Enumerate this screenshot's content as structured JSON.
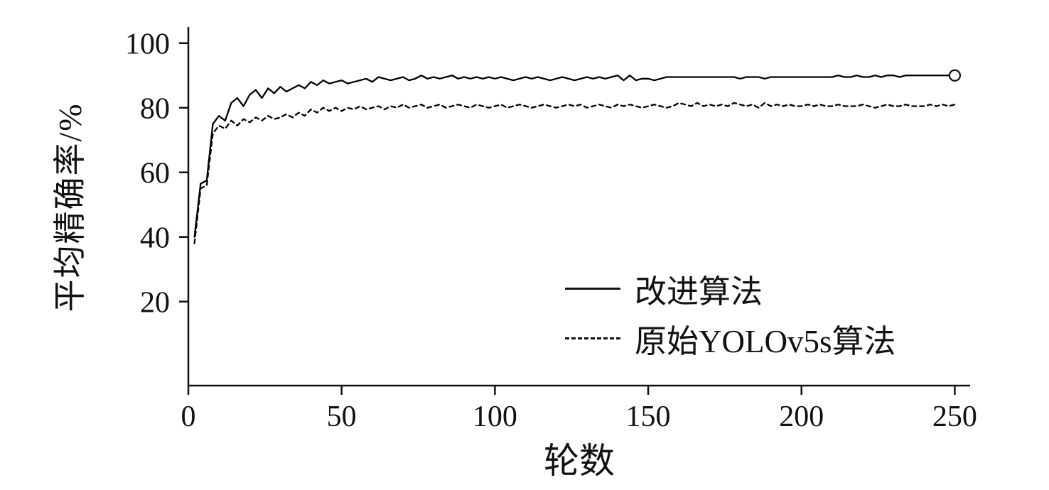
{
  "chart_data": {
    "type": "line",
    "title": "",
    "xlabel": "轮数",
    "ylabel": "平均精确率/%",
    "xlim": [
      0,
      255
    ],
    "ylim": [
      -6,
      105
    ],
    "xticks": [
      0,
      50,
      100,
      150,
      200,
      250
    ],
    "yticks": [
      20,
      40,
      60,
      80,
      100
    ],
    "grid": false,
    "legend_position": "inside lower right",
    "x": [
      2,
      4,
      6,
      8,
      10,
      12,
      14,
      16,
      18,
      20,
      22,
      24,
      26,
      28,
      30,
      32,
      34,
      36,
      38,
      40,
      42,
      44,
      46,
      48,
      50,
      52,
      54,
      56,
      58,
      60,
      62,
      64,
      66,
      68,
      70,
      72,
      74,
      76,
      78,
      80,
      82,
      84,
      86,
      88,
      90,
      92,
      94,
      96,
      98,
      100,
      102,
      104,
      106,
      108,
      110,
      112,
      114,
      116,
      118,
      120,
      122,
      124,
      126,
      128,
      130,
      132,
      134,
      136,
      138,
      140,
      142,
      144,
      146,
      148,
      150,
      152,
      154,
      156,
      158,
      160,
      162,
      164,
      166,
      168,
      170,
      172,
      174,
      176,
      178,
      180,
      182,
      184,
      186,
      188,
      190,
      192,
      194,
      196,
      198,
      200,
      202,
      204,
      206,
      208,
      210,
      212,
      214,
      216,
      218,
      220,
      222,
      224,
      226,
      228,
      230,
      232,
      234,
      236,
      238,
      240,
      242,
      244,
      246,
      248,
      250
    ],
    "series": [
      {
        "name": "改进算法",
        "style": "solid",
        "color": "#000000",
        "end_marker": "open-circle",
        "values": [
          40.0,
          56.5,
          57.5,
          75.0,
          77.5,
          76.0,
          81.5,
          83.0,
          80.5,
          84.0,
          85.5,
          83.0,
          86.0,
          84.5,
          86.5,
          85.0,
          86.0,
          87.0,
          86.0,
          88.0,
          87.0,
          88.5,
          87.5,
          88.0,
          88.5,
          87.5,
          88.0,
          88.5,
          89.0,
          88.0,
          89.5,
          89.0,
          88.5,
          89.0,
          89.5,
          88.5,
          89.0,
          90.0,
          89.0,
          89.5,
          89.0,
          89.5,
          90.0,
          89.0,
          89.5,
          89.0,
          89.5,
          89.0,
          89.5,
          89.0,
          89.5,
          89.0,
          88.5,
          89.0,
          89.5,
          89.0,
          89.5,
          89.0,
          88.5,
          89.0,
          89.5,
          89.0,
          88.5,
          89.0,
          89.5,
          89.0,
          89.5,
          89.0,
          89.5,
          90.0,
          88.5,
          90.0,
          88.5,
          89.0,
          89.0,
          88.5,
          89.0,
          89.5,
          89.5,
          89.5,
          89.5,
          89.5,
          89.5,
          89.5,
          89.5,
          89.5,
          89.5,
          89.5,
          89.5,
          89.0,
          89.5,
          89.5,
          89.5,
          89.0,
          89.5,
          89.5,
          89.5,
          89.5,
          89.5,
          89.5,
          89.5,
          89.5,
          89.5,
          89.5,
          89.5,
          90.0,
          89.5,
          89.5,
          90.0,
          89.5,
          89.5,
          90.0,
          89.5,
          90.0,
          90.0,
          89.5,
          90.0,
          90.0,
          90.0,
          90.0,
          90.0,
          90.0,
          90.0,
          90.0,
          90.0
        ]
      },
      {
        "name": "原始YOLOv5s算法",
        "style": "dashed",
        "color": "#000000",
        "end_marker": "none",
        "values": [
          38.0,
          55.0,
          56.0,
          72.0,
          74.5,
          73.5,
          76.0,
          74.5,
          76.5,
          75.5,
          77.0,
          76.0,
          77.5,
          76.5,
          77.0,
          78.0,
          77.0,
          78.5,
          77.5,
          79.5,
          78.5,
          80.0,
          79.0,
          80.0,
          79.0,
          80.0,
          79.5,
          80.5,
          79.5,
          80.0,
          80.5,
          79.5,
          80.5,
          80.0,
          81.0,
          80.0,
          80.5,
          81.0,
          80.0,
          80.5,
          81.0,
          80.0,
          80.5,
          81.0,
          80.5,
          80.0,
          81.0,
          80.5,
          80.0,
          80.5,
          81.0,
          80.0,
          80.5,
          81.0,
          80.5,
          80.0,
          80.5,
          81.0,
          80.5,
          80.0,
          80.5,
          81.0,
          80.5,
          81.0,
          80.0,
          80.5,
          81.0,
          80.5,
          80.0,
          81.0,
          80.5,
          81.0,
          80.5,
          80.0,
          80.5,
          81.0,
          80.5,
          80.0,
          80.5,
          81.5,
          81.0,
          80.5,
          81.5,
          80.5,
          81.0,
          80.5,
          81.0,
          80.5,
          81.5,
          81.0,
          80.5,
          81.0,
          80.0,
          81.5,
          80.5,
          81.0,
          80.5,
          81.0,
          80.5,
          80.5,
          81.0,
          80.5,
          81.0,
          80.5,
          80.5,
          81.0,
          80.5,
          80.5,
          80.5,
          81.0,
          80.5,
          80.0,
          80.5,
          81.0,
          80.5,
          80.5,
          81.0,
          80.5,
          80.5,
          80.5,
          81.0,
          80.5,
          81.0,
          80.5,
          81.0
        ]
      }
    ]
  }
}
